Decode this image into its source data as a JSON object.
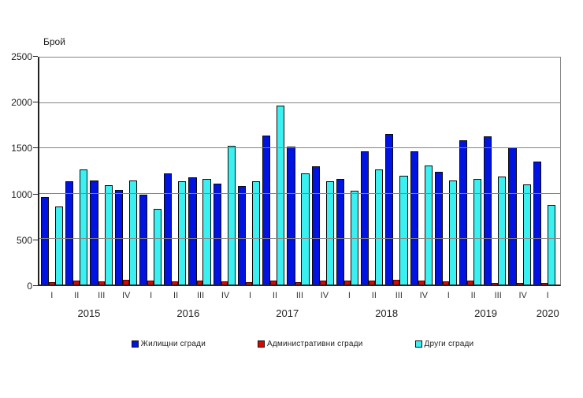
{
  "y_axis_title": "Брой",
  "chart_data": {
    "type": "bar",
    "title": "",
    "xlabel": "",
    "ylabel": "Брой",
    "ylim": [
      0,
      2500
    ],
    "yticks": [
      0,
      500,
      1000,
      1500,
      2000,
      2500
    ],
    "grid": true,
    "legend_position": "bottom",
    "years": [
      {
        "label": "2015",
        "quarters": 4
      },
      {
        "label": "2016",
        "quarters": 4
      },
      {
        "label": "2017",
        "quarters": 4
      },
      {
        "label": "2018",
        "quarters": 4
      },
      {
        "label": "2019",
        "quarters": 4
      },
      {
        "label": "2020",
        "quarters": 1
      }
    ],
    "categories": [
      "I",
      "II",
      "III",
      "IV",
      "I",
      "II",
      "III",
      "IV",
      "I",
      "II",
      "III",
      "IV",
      "I",
      "II",
      "III",
      "IV",
      "I",
      "II",
      "III",
      "IV",
      "I"
    ],
    "series": [
      {
        "name": "Жилищни сгради",
        "color": "#0013e0",
        "values": [
          960,
          1140,
          1150,
          1045,
          990,
          1220,
          1180,
          1115,
          1085,
          1645,
          1520,
          1300,
          1165,
          1470,
          1660,
          1470,
          1245,
          1590,
          1630,
          1510,
          1350
        ]
      },
      {
        "name": "Административни сгради",
        "color": "#dd0500",
        "values": [
          30,
          45,
          35,
          50,
          45,
          35,
          45,
          35,
          30,
          40,
          30,
          45,
          40,
          45,
          50,
          40,
          35,
          40,
          15,
          20,
          15
        ]
      },
      {
        "name": "Други сгради",
        "color": "#3af0f0",
        "values": [
          860,
          1270,
          1090,
          1150,
          830,
          1140,
          1160,
          1530,
          1135,
          1970,
          1220,
          1135,
          1030,
          1270,
          1200,
          1310,
          1150,
          1165,
          1190,
          1105,
          880
        ]
      }
    ]
  }
}
